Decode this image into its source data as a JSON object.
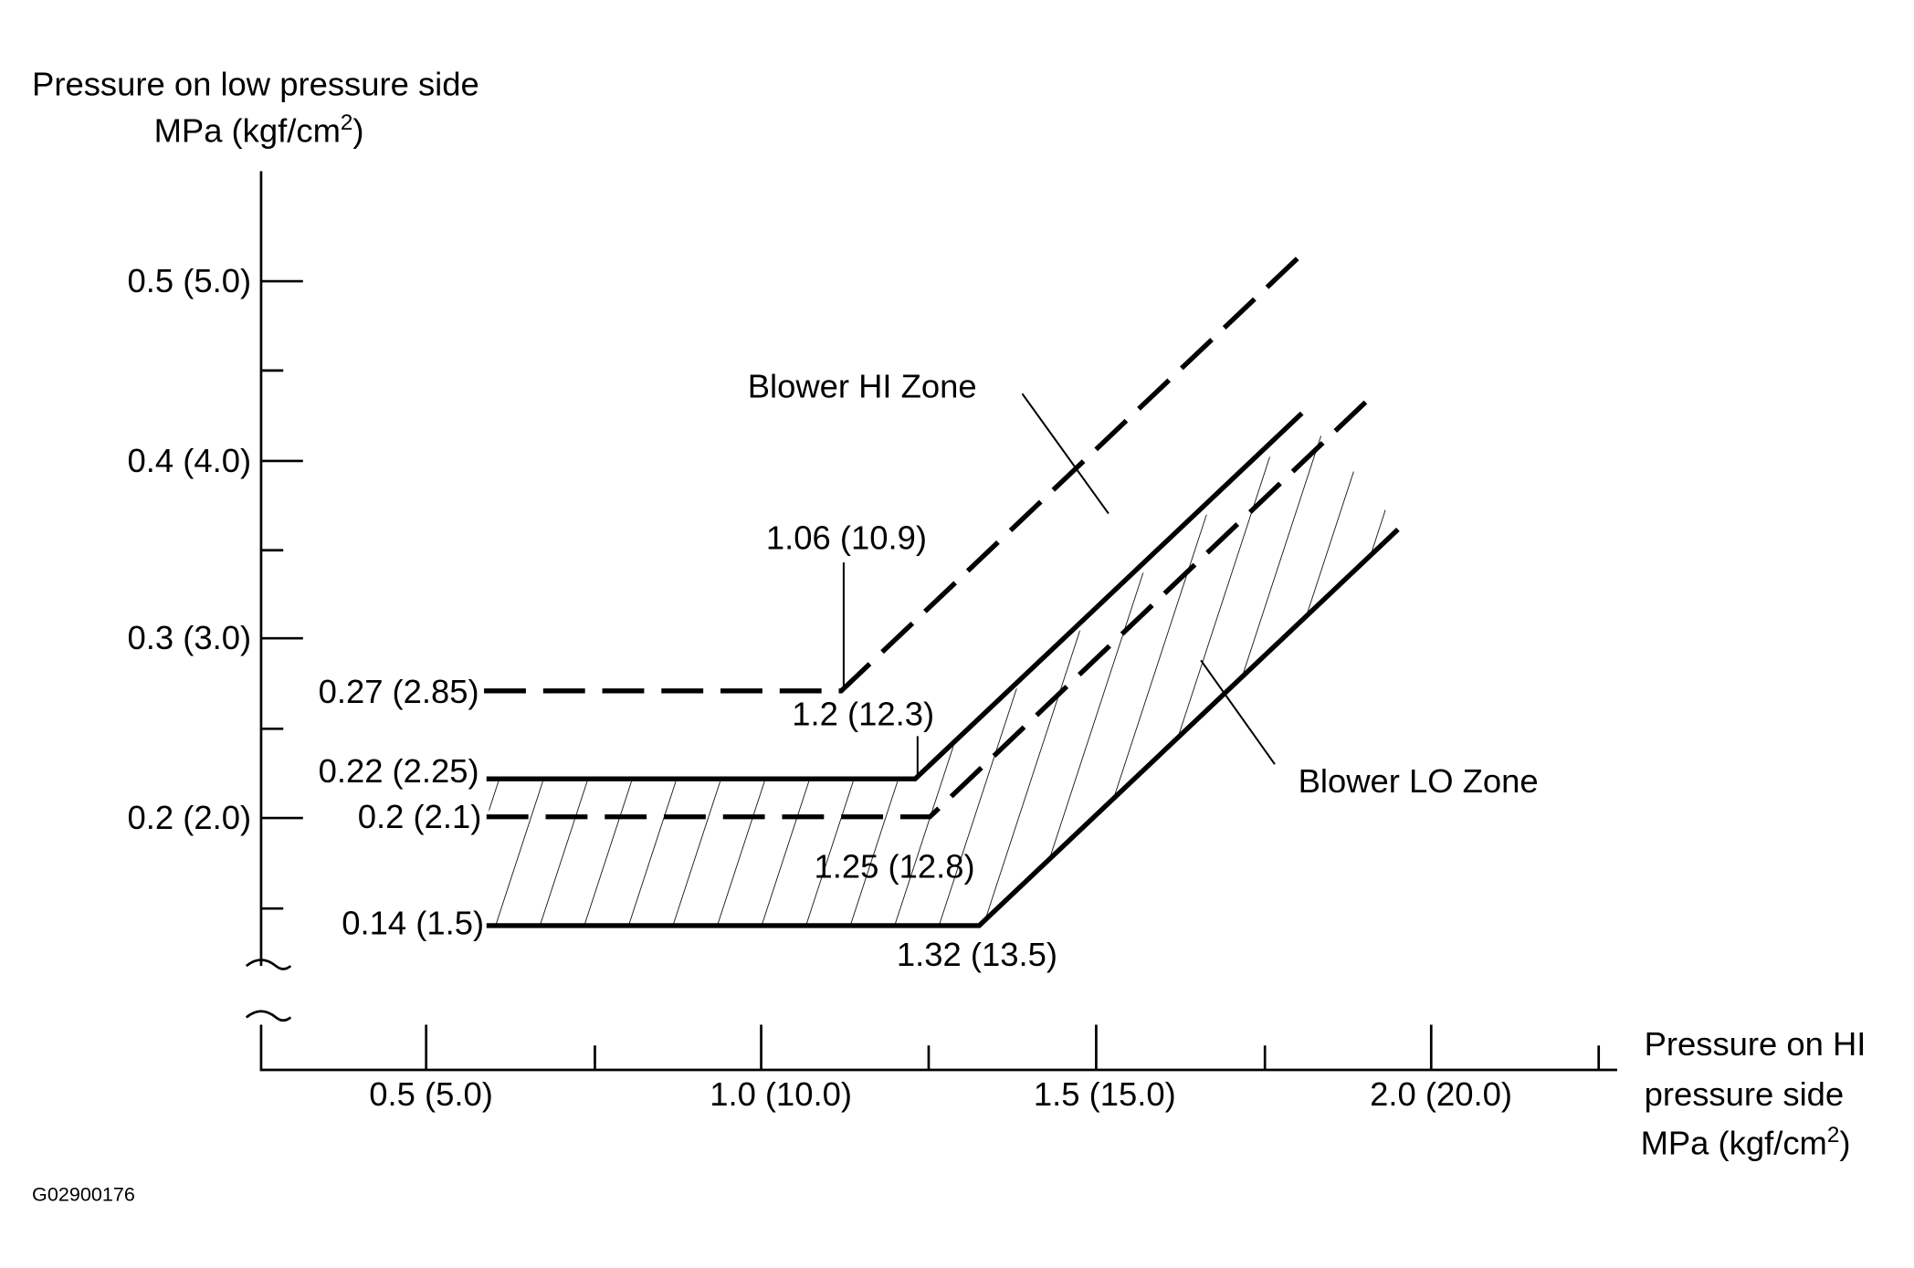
{
  "y_axis": {
    "title_line1": "Pressure on low pressure side",
    "title_line2": "MPa (kgf/cm",
    "title_sup": "2",
    "title_end": ")",
    "ticks": [
      "0.5 (5.0)",
      "0.4 (4.0)",
      "0.3 (3.0)",
      "0.2 (2.0)"
    ]
  },
  "x_axis": {
    "title_line1": "Pressure on HI",
    "title_line2": "pressure side",
    "title_line3": "MPa (kgf/cm",
    "title_sup": "2",
    "title_end": ")",
    "ticks": [
      "0.5 (5.0)",
      "1.0 (10.0)",
      "1.5 (15.0)",
      "2.0 (20.0)"
    ]
  },
  "zones": [
    "Blower HI Zone",
    "Blower LO Zone"
  ],
  "point_labels": [
    "0.27 (2.85)",
    "0.22 (2.25)",
    "0.2 (2.1)",
    "0.14 (1.5)",
    "1.06 (10.9)",
    "1.2 (12.3)",
    "1.25 (12.8)",
    "1.32 (13.5)"
  ],
  "figure_id": "G02900176"
}
